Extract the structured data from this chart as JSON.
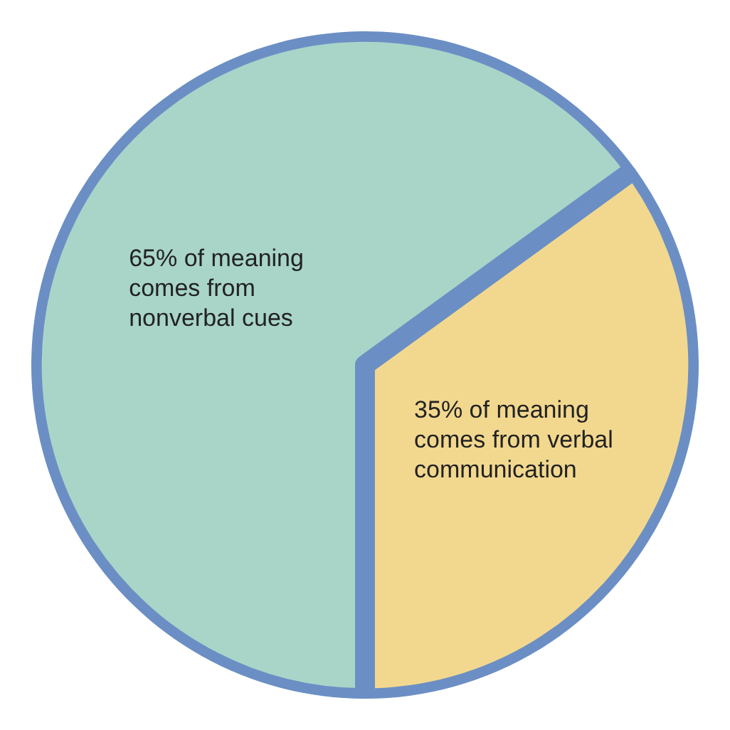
{
  "chart_data": {
    "type": "pie",
    "categories": [
      "65% of meaning comes from nonverbal cues",
      "35% of meaning comes from verbal communication"
    ],
    "values": [
      65,
      35
    ],
    "colors": [
      "#a9d5c9",
      "#f2d88f"
    ],
    "legend": false
  }
}
